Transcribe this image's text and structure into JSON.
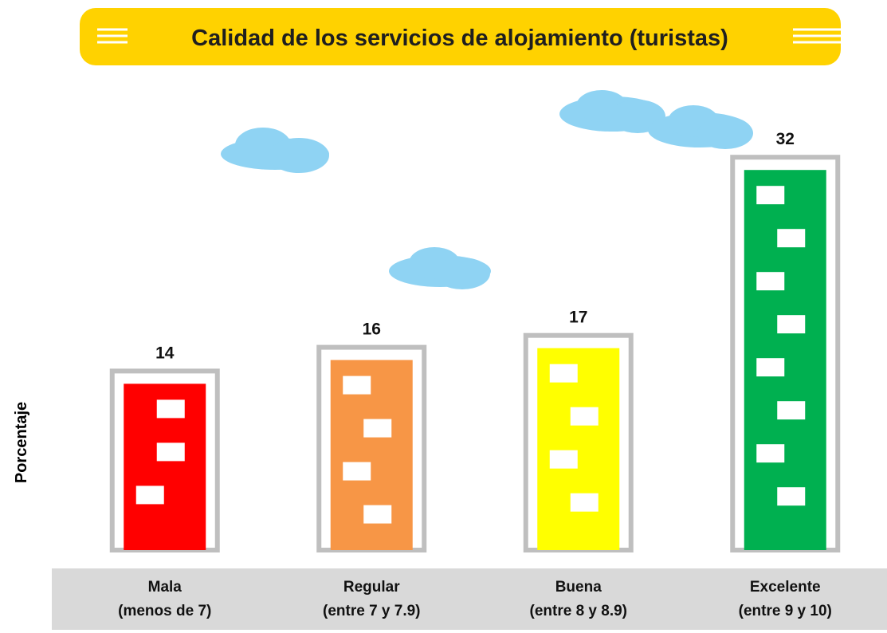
{
  "chart_data": {
    "type": "bar",
    "title": "Calidad de los servicios de alojamiento (turistas)",
    "y_label": "Porcentaje",
    "categories": [
      "Mala\n(menos de 7)",
      "Regular\n(entre 7 y 7.9)",
      "Buena\n(entre 8 y 8.9)",
      "Excelente\n(entre 9 y 10)"
    ],
    "values": [
      14,
      16,
      17,
      32
    ],
    "colors": [
      "#ff0000",
      "#f79646",
      "#ffff00",
      "#00b050"
    ]
  }
}
